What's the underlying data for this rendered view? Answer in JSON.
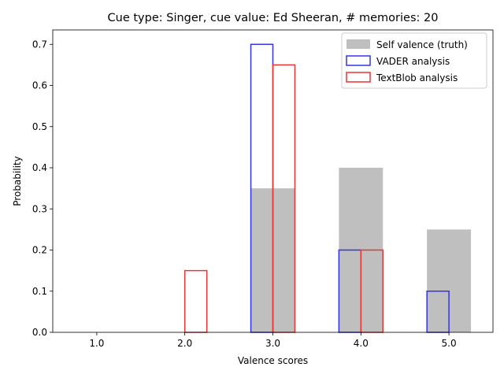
{
  "chart_data": {
    "type": "bar",
    "title": "Cue type: Singer, cue value: Ed Sheeran, # memories: 20",
    "xlabel": "Valence scores",
    "ylabel": "Probability",
    "categories": [
      "1.0",
      "2.0",
      "3.0",
      "4.0",
      "5.0"
    ],
    "x": [
      1.0,
      2.0,
      3.0,
      4.0,
      5.0
    ],
    "xlim": [
      0.5,
      5.5
    ],
    "ylim": [
      0,
      0.735
    ],
    "yticks": [
      "0.0",
      "0.1",
      "0.2",
      "0.3",
      "0.4",
      "0.5",
      "0.6",
      "0.7"
    ],
    "grid": false,
    "legend_position": "top-right",
    "series": [
      {
        "name": "Self valence (truth)",
        "style": "filled",
        "color": "#bfbfbf",
        "values": [
          0.0,
          0.0,
          0.35,
          0.4,
          0.25
        ]
      },
      {
        "name": "VADER analysis",
        "style": "outline",
        "color": "#3333ee",
        "values": [
          0.0,
          0.0,
          0.7,
          0.2,
          0.1
        ]
      },
      {
        "name": "TextBlob analysis",
        "style": "outline",
        "color": "#ee3333",
        "values": [
          0.0,
          0.15,
          0.65,
          0.2,
          0.0
        ]
      }
    ]
  }
}
